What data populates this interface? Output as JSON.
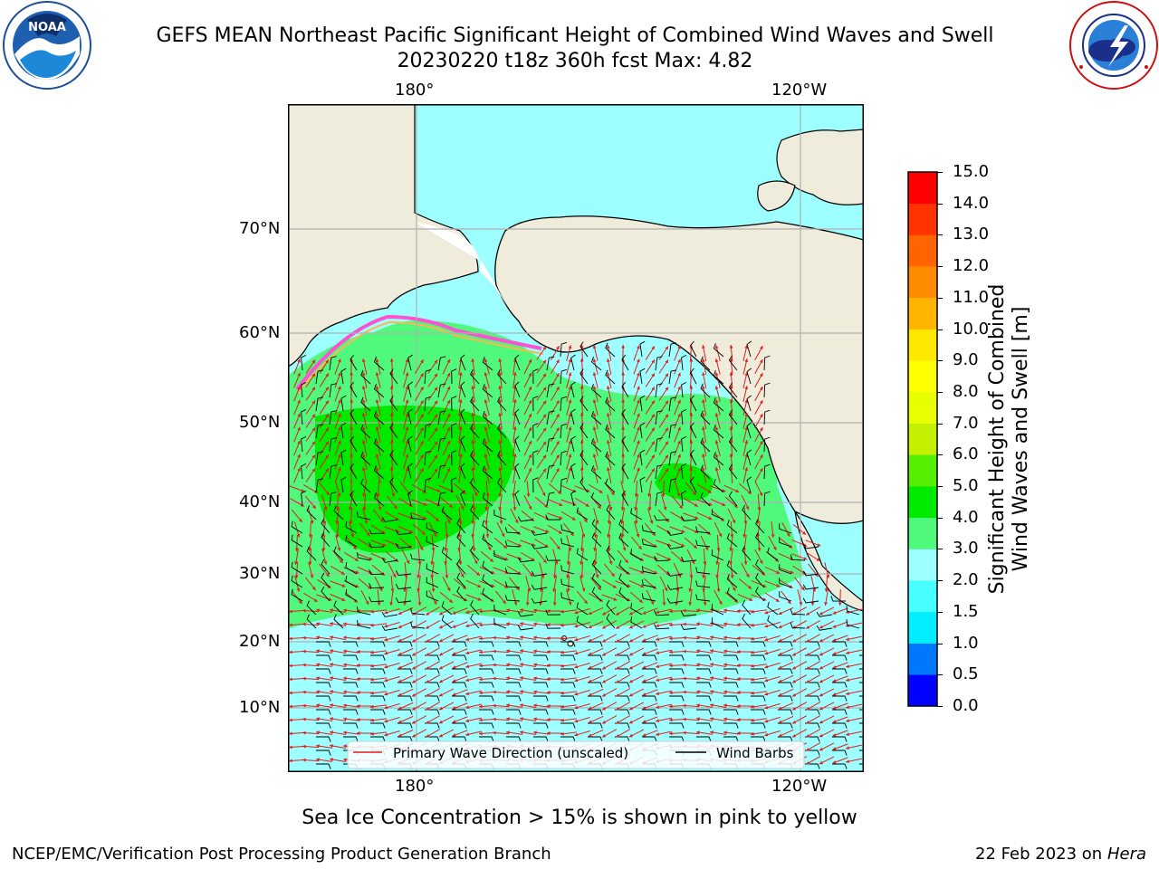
{
  "title_line1": "GEFS MEAN Northeast Pacific Significant Height of Combined Wind Waves and Swell",
  "title_line2": "20230220 t18z 360h fcst   Max: 4.82",
  "logos": {
    "left": "NOAA",
    "right": "NATIONAL WEATHER SERVICE"
  },
  "axis": {
    "lon_top": [
      "180°",
      "120°W"
    ],
    "lon_bottom": [
      "180°",
      "120°W"
    ],
    "lat": [
      "70°N",
      "60°N",
      "50°N",
      "40°N",
      "30°N",
      "20°N",
      "10°N"
    ]
  },
  "legend": {
    "wave_label": "Primary Wave Direction (unscaled)",
    "barb_label": "Wind Barbs",
    "wave_color": "#e41a1c",
    "barb_color": "#000000"
  },
  "colorbar": {
    "title_line1": "Significant Height of Combined",
    "title_line2": "Wind Waves and Swell [m]",
    "ticks": [
      "0.0",
      "0.5",
      "1.0",
      "1.5",
      "2.0",
      "3.0",
      "4.0",
      "5.0",
      "6.0",
      "7.0",
      "8.0",
      "9.0",
      "10.0",
      "11.0",
      "12.0",
      "13.0",
      "14.0",
      "15.0"
    ],
    "colors": [
      "#0000ff",
      "#0077ff",
      "#00eeff",
      "#48ffff",
      "#9dffff",
      "#50f87c",
      "#00ea00",
      "#55ee00",
      "#c3f000",
      "#e8ff00",
      "#ffff00",
      "#ffe800",
      "#ffb400",
      "#ff8c00",
      "#ff6400",
      "#ff3300",
      "#ff0000"
    ]
  },
  "map": {
    "land_color": "#efecdc",
    "ocean_light": "#9dffff",
    "ocean_mid": "#50f87c",
    "ocean_high": "#00ea00",
    "grid_color": "#b0b0b0"
  },
  "note": "Sea Ice Concentration > 15% is shown in pink to yellow",
  "footer_left": "NCEP/EMC/Verification Post Processing Product Generation Branch",
  "footer_right_date": "22 Feb 2023 on",
  "footer_right_host": "Hera"
}
